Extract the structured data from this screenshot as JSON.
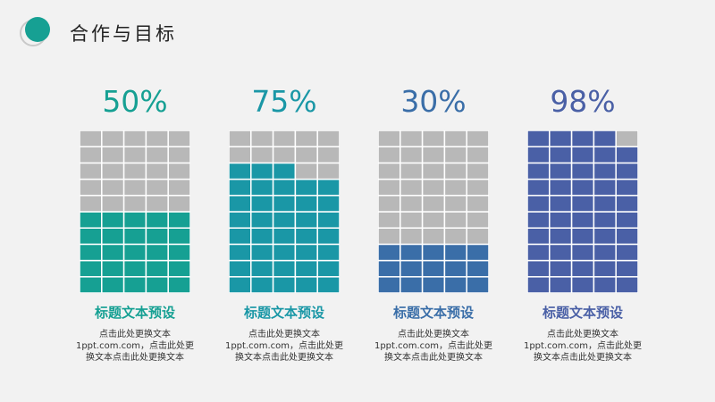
{
  "header": {
    "title": "合作与目标",
    "logo_icon": "circle-logo-icon",
    "accent_color": "#16a093"
  },
  "panels": [
    {
      "percent_label": "50%",
      "value": 0.5,
      "color": "#16a093",
      "title": "标题文本预设",
      "description": "点击此处更换文本1ppt.com.com，点击此处更换文本点击此处更换文本"
    },
    {
      "percent_label": "75%",
      "value": 0.75,
      "color": "#1a97a6",
      "title": "标题文本预设",
      "description": "点击此处更换文本1ppt.com.com，点击此处更换文本点击此处更换文本"
    },
    {
      "percent_label": "30%",
      "value": 0.3,
      "color": "#3a6ea8",
      "title": "标题文本预设",
      "description": "点击此处更换文本1ppt.com.com，点击此处更换文本点击此处更换文本"
    },
    {
      "percent_label": "98%",
      "value": 0.98,
      "color": "#4a60a6",
      "title": "标题文本预设",
      "description": "点击此处更换文本1ppt.com.com，点击此处更换文本点击此处更换文本"
    }
  ],
  "grid": {
    "rows": 10,
    "cols": 5,
    "empty_color": "#b8b8b8"
  }
}
